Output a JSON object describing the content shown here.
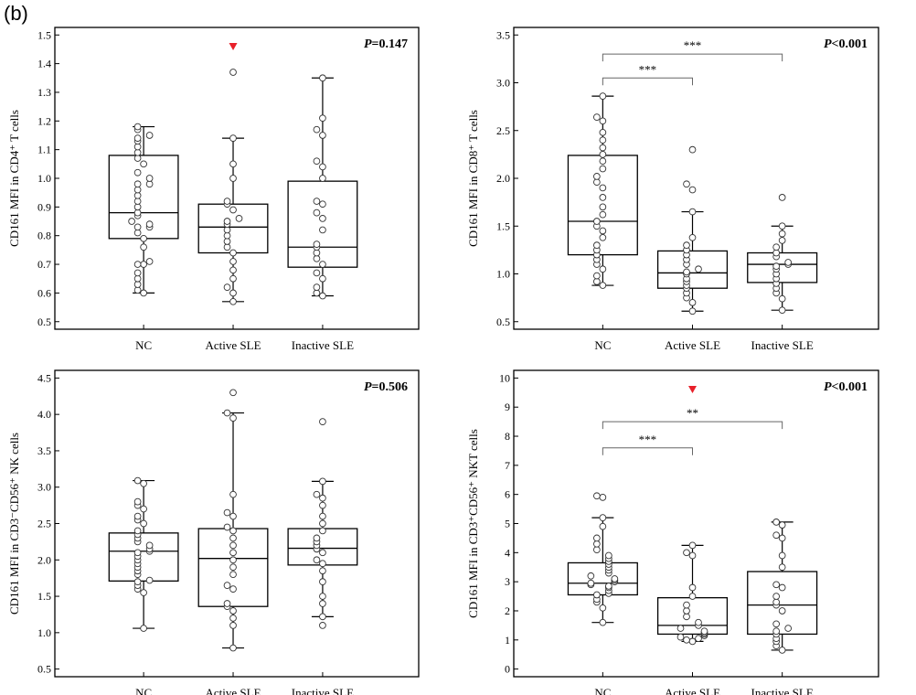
{
  "figure_label": "(b)",
  "marker_color": "#e8202a",
  "chart_data": [
    {
      "type": "box",
      "ylabel": "CD161 MFI in CD4⁺ T cells",
      "ylim": [
        0.5,
        1.5
      ],
      "yticks": [
        0.5,
        0.6,
        0.7,
        0.8,
        0.9,
        1.0,
        1.1,
        1.2,
        1.3,
        1.4,
        1.5
      ],
      "tick_decimals": 1,
      "categories": [
        "NC",
        "Active SLE",
        "Inactive SLE"
      ],
      "p_label": "P",
      "p_value": "=0.147",
      "marker_categories": [
        1
      ],
      "brackets": [],
      "boxes": [
        {
          "min": 0.6,
          "q1": 0.79,
          "median": 0.88,
          "q3": 1.08,
          "max": 1.18
        },
        {
          "min": 0.57,
          "q1": 0.74,
          "median": 0.83,
          "q3": 0.91,
          "max": 1.14
        },
        {
          "min": 0.59,
          "q1": 0.69,
          "median": 0.76,
          "q3": 0.99,
          "max": 1.35
        }
      ],
      "points": [
        [
          0.6,
          0.61,
          0.63,
          0.65,
          0.67,
          0.7,
          0.7,
          0.71,
          0.76,
          0.79,
          0.81,
          0.83,
          0.83,
          0.84,
          0.85,
          0.87,
          0.88,
          0.9,
          0.92,
          0.94,
          0.96,
          0.98,
          0.98,
          1.0,
          1.02,
          1.05,
          1.07,
          1.09,
          1.11,
          1.13,
          1.14,
          1.15,
          1.17,
          1.18
        ],
        [
          0.57,
          0.6,
          0.62,
          0.65,
          0.68,
          0.71,
          0.74,
          0.76,
          0.78,
          0.8,
          0.82,
          0.84,
          0.85,
          0.86,
          0.89,
          0.91,
          0.92,
          1.0,
          1.05,
          1.14,
          1.37
        ],
        [
          0.59,
          0.6,
          0.62,
          0.65,
          0.67,
          0.7,
          0.72,
          0.74,
          0.76,
          0.77,
          0.82,
          0.86,
          0.88,
          0.91,
          0.92,
          1.0,
          1.04,
          1.06,
          1.15,
          1.17,
          1.21,
          1.35
        ]
      ]
    },
    {
      "type": "box",
      "ylabel": "CD161 MFI in CD8⁺ T cells",
      "ylim": [
        0.5,
        3.5
      ],
      "yticks": [
        0.5,
        1.0,
        1.5,
        2.0,
        2.5,
        3.0,
        3.5
      ],
      "tick_decimals": 1,
      "categories": [
        "NC",
        "Active SLE",
        "Inactive SLE"
      ],
      "p_label": "P",
      "p_value": "<0.001",
      "marker_categories": [],
      "brackets": [
        {
          "from": 0,
          "to": 1,
          "y": 3.05,
          "label": "***"
        },
        {
          "from": 0,
          "to": 2,
          "y": 3.3,
          "label": "***"
        }
      ],
      "boxes": [
        {
          "min": 0.88,
          "q1": 1.2,
          "median": 1.55,
          "q3": 2.24,
          "max": 2.86
        },
        {
          "min": 0.61,
          "q1": 0.85,
          "median": 1.01,
          "q3": 1.24,
          "max": 1.65
        },
        {
          "min": 0.62,
          "q1": 0.91,
          "median": 1.1,
          "q3": 1.22,
          "max": 1.5
        }
      ],
      "points": [
        [
          0.88,
          0.92,
          0.98,
          1.05,
          1.1,
          1.15,
          1.2,
          1.25,
          1.3,
          1.38,
          1.45,
          1.5,
          1.55,
          1.62,
          1.7,
          1.8,
          1.9,
          1.96,
          2.02,
          2.1,
          2.18,
          2.25,
          2.32,
          2.4,
          2.48,
          2.6,
          2.64,
          2.86
        ],
        [
          0.61,
          0.7,
          0.75,
          0.8,
          0.85,
          0.88,
          0.92,
          0.95,
          1.0,
          1.02,
          1.05,
          1.1,
          1.15,
          1.2,
          1.25,
          1.3,
          1.38,
          1.65,
          1.88,
          1.94,
          2.3
        ],
        [
          0.62,
          0.74,
          0.8,
          0.85,
          0.9,
          0.95,
          1.0,
          1.05,
          1.08,
          1.1,
          1.12,
          1.18,
          1.22,
          1.28,
          1.35,
          1.42,
          1.5,
          1.8
        ]
      ]
    },
    {
      "type": "box",
      "ylabel": "CD161 MFI in CD3⁻CD56⁺ NK cells",
      "ylim": [
        0.5,
        4.5
      ],
      "yticks": [
        0.5,
        1.0,
        1.5,
        2.0,
        2.5,
        3.0,
        3.5,
        4.0,
        4.5
      ],
      "tick_decimals": 1,
      "categories": [
        "NC",
        "Active SLE",
        "Inactive SLE"
      ],
      "p_label": "P",
      "p_value": "=0.506",
      "marker_categories": [],
      "brackets": [],
      "boxes": [
        {
          "min": 1.06,
          "q1": 1.71,
          "median": 2.12,
          "q3": 2.37,
          "max": 3.09
        },
        {
          "min": 0.79,
          "q1": 1.36,
          "median": 2.02,
          "q3": 2.43,
          "max": 4.02
        },
        {
          "min": 1.22,
          "q1": 1.93,
          "median": 2.16,
          "q3": 2.43,
          "max": 3.08
        }
      ],
      "points": [
        [
          1.06,
          1.55,
          1.6,
          1.65,
          1.7,
          1.72,
          1.8,
          1.85,
          1.9,
          1.95,
          2.0,
          2.05,
          2.1,
          2.12,
          2.15,
          2.2,
          2.25,
          2.3,
          2.35,
          2.4,
          2.5,
          2.55,
          2.6,
          2.7,
          2.75,
          2.8,
          3.05,
          3.09
        ],
        [
          0.79,
          1.1,
          1.2,
          1.3,
          1.36,
          1.4,
          1.6,
          1.65,
          1.8,
          1.9,
          2.0,
          2.1,
          2.2,
          2.3,
          2.4,
          2.45,
          2.6,
          2.65,
          2.9,
          3.95,
          4.02,
          4.3
        ],
        [
          1.1,
          1.22,
          1.4,
          1.5,
          1.7,
          1.85,
          1.95,
          2.0,
          2.1,
          2.15,
          2.2,
          2.25,
          2.3,
          2.4,
          2.5,
          2.6,
          2.75,
          2.85,
          2.9,
          3.08,
          3.9
        ]
      ]
    },
    {
      "type": "box",
      "ylabel": "CD161 MFI in CD3⁺CD56⁺ NKT cells",
      "ylim": [
        0,
        10
      ],
      "yticks": [
        0,
        1,
        2,
        3,
        4,
        5,
        6,
        7,
        8,
        9,
        10
      ],
      "tick_decimals": 0,
      "categories": [
        "NC",
        "Active SLE",
        "Inactive SLE"
      ],
      "p_label": "P",
      "p_value": "<0.001",
      "marker_categories": [
        1
      ],
      "brackets": [
        {
          "from": 0,
          "to": 1,
          "y": 7.6,
          "label": "***"
        },
        {
          "from": 0,
          "to": 2,
          "y": 8.5,
          "label": "**"
        }
      ],
      "boxes": [
        {
          "min": 1.6,
          "q1": 2.55,
          "median": 2.95,
          "q3": 3.65,
          "max": 5.2
        },
        {
          "min": 0.95,
          "q1": 1.2,
          "median": 1.5,
          "q3": 2.45,
          "max": 4.25
        },
        {
          "min": 0.65,
          "q1": 1.2,
          "median": 2.2,
          "q3": 3.35,
          "max": 5.05
        }
      ],
      "points": [
        [
          1.6,
          2.1,
          2.3,
          2.4,
          2.55,
          2.6,
          2.7,
          2.8,
          2.85,
          2.9,
          2.95,
          3.0,
          3.05,
          3.1,
          3.2,
          3.3,
          3.4,
          3.5,
          3.6,
          3.7,
          3.8,
          3.9,
          4.1,
          4.3,
          4.5,
          4.9,
          5.2,
          5.9,
          5.95
        ],
        [
          0.95,
          1.0,
          1.05,
          1.1,
          1.15,
          1.2,
          1.25,
          1.3,
          1.4,
          1.5,
          1.6,
          1.8,
          2.0,
          2.2,
          2.5,
          2.8,
          3.9,
          4.0,
          4.25
        ],
        [
          0.65,
          0.8,
          0.95,
          1.05,
          1.2,
          1.3,
          1.4,
          1.55,
          2.0,
          2.2,
          2.3,
          2.5,
          2.8,
          2.9,
          3.5,
          3.9,
          4.5,
          4.6,
          4.95,
          5.05
        ]
      ]
    }
  ]
}
